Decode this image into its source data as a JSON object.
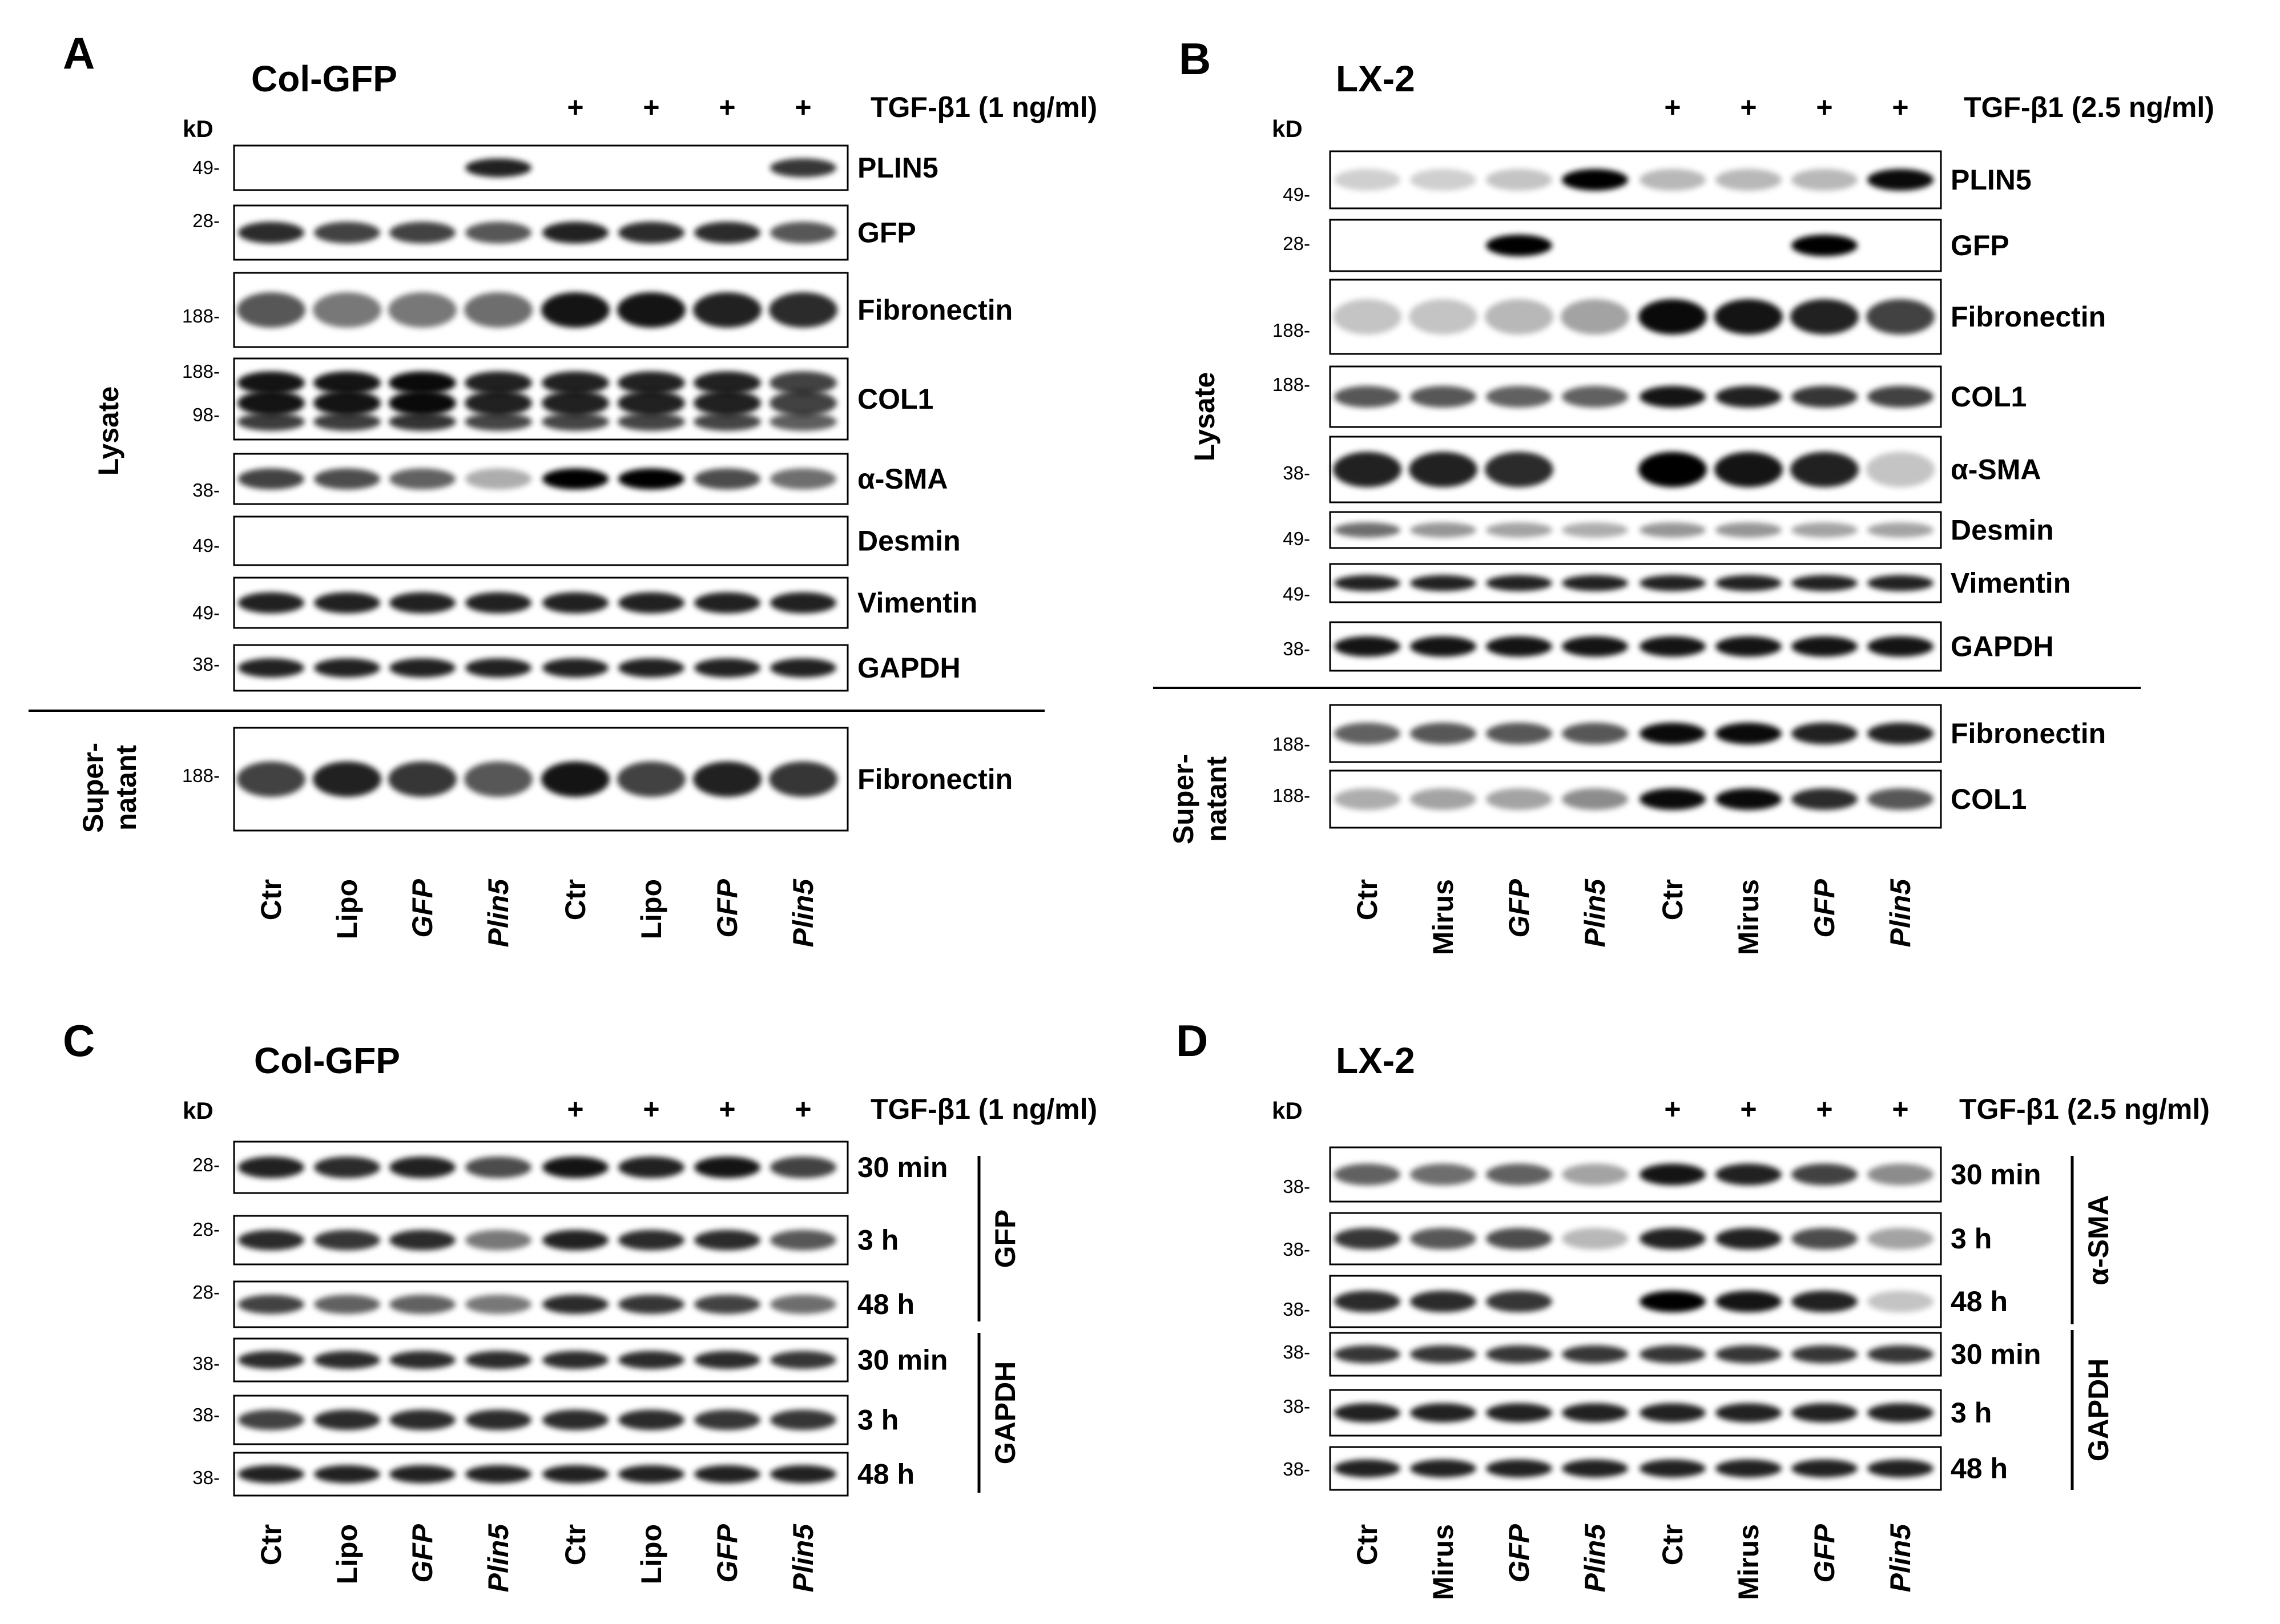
{
  "panels": [
    {
      "id": "A",
      "label": "A",
      "title": "Col-GFP",
      "treatment": "TGF-β1 (1 ng/ml)",
      "kd_header": "kD",
      "plus": [
        "+",
        "+",
        "+",
        "+"
      ],
      "lanes": [
        {
          "label": "Ctr",
          "italic": false
        },
        {
          "label": "Lipo",
          "italic": false
        },
        {
          "label": "GFP",
          "italic": true
        },
        {
          "label": "Plin5",
          "italic": true
        },
        {
          "label": "Ctr",
          "italic": false
        },
        {
          "label": "Lipo",
          "italic": false
        },
        {
          "label": "GFP",
          "italic": true
        },
        {
          "label": "Plin5",
          "italic": true
        }
      ],
      "sections": [
        {
          "label": "Lysate"
        },
        {
          "label": "Super-\nnatant"
        }
      ],
      "blots": [
        {
          "label": "PLIN5",
          "markers": [
            "49-"
          ],
          "bands": [
            0,
            0,
            0,
            0.85,
            0,
            0,
            0,
            0.75
          ]
        },
        {
          "label": "GFP",
          "markers": [
            "28-"
          ],
          "bands": [
            0.8,
            0.7,
            0.7,
            0.6,
            0.85,
            0.8,
            0.8,
            0.6
          ]
        },
        {
          "label": "Fibronectin",
          "markers": [
            "188-"
          ],
          "bands": [
            0.6,
            0.45,
            0.45,
            0.5,
            0.9,
            0.9,
            0.85,
            0.8
          ]
        },
        {
          "label": "COL1",
          "markers": [
            "188-",
            "98-"
          ],
          "bands": [
            0.9,
            0.9,
            0.95,
            0.85,
            0.85,
            0.85,
            0.85,
            0.7
          ]
        },
        {
          "label": "α-SMA",
          "markers": [
            "38-"
          ],
          "bands": [
            0.7,
            0.65,
            0.55,
            0.2,
            1,
            1,
            0.65,
            0.5
          ]
        },
        {
          "label": "Desmin",
          "markers": [
            "49-"
          ],
          "bands": [
            0,
            0,
            0,
            0,
            0,
            0,
            0,
            0
          ]
        },
        {
          "label": "Vimentin",
          "markers": [
            "49-"
          ],
          "bands": [
            0.85,
            0.85,
            0.85,
            0.85,
            0.85,
            0.85,
            0.85,
            0.85
          ]
        },
        {
          "label": "GAPDH",
          "markers": [
            "38-"
          ],
          "bands": [
            0.85,
            0.85,
            0.85,
            0.85,
            0.85,
            0.85,
            0.85,
            0.85
          ]
        },
        {
          "label": "Fibronectin",
          "markers": [
            "188-"
          ],
          "bands": [
            0.7,
            0.85,
            0.75,
            0.6,
            0.9,
            0.7,
            0.85,
            0.75
          ]
        }
      ]
    },
    {
      "id": "B",
      "label": "B",
      "title": "LX-2",
      "treatment": "TGF-β1  (2.5 ng/ml)",
      "kd_header": "kD",
      "plus": [
        "+",
        "+",
        "+",
        "+"
      ],
      "lanes": [
        {
          "label": "Ctr",
          "italic": false
        },
        {
          "label": "Mirus",
          "italic": false
        },
        {
          "label": "GFP",
          "italic": true
        },
        {
          "label": "Plin5",
          "italic": true
        },
        {
          "label": "Ctr",
          "italic": false
        },
        {
          "label": "Mirus",
          "italic": false
        },
        {
          "label": "GFP",
          "italic": true
        },
        {
          "label": "Plin5",
          "italic": true
        }
      ],
      "sections": [
        {
          "label": "Lysate"
        },
        {
          "label": "Super-\nnatant"
        }
      ],
      "blots": [
        {
          "label": "PLIN5",
          "markers": [
            "49-"
          ],
          "bands": [
            0.05,
            0.05,
            0.1,
            1,
            0.15,
            0.15,
            0.15,
            0.95
          ]
        },
        {
          "label": "GFP",
          "markers": [
            "28-"
          ],
          "bands": [
            0,
            0,
            1,
            0,
            0,
            0,
            1,
            0
          ]
        },
        {
          "label": "Fibronectin",
          "markers": [
            "188-"
          ],
          "bands": [
            0.1,
            0.1,
            0.15,
            0.25,
            0.95,
            0.9,
            0.85,
            0.7
          ]
        },
        {
          "label": "COL1",
          "markers": [
            "188-"
          ],
          "bands": [
            0.6,
            0.6,
            0.55,
            0.55,
            0.9,
            0.85,
            0.75,
            0.7
          ]
        },
        {
          "label": "α-SMA",
          "markers": [
            "38-"
          ],
          "bands": [
            0.85,
            0.85,
            0.8,
            0,
            1,
            0.9,
            0.85,
            0.1
          ]
        },
        {
          "label": "Desmin",
          "markers": [
            "49-"
          ],
          "bands": [
            0.5,
            0.3,
            0.25,
            0.2,
            0.3,
            0.3,
            0.25,
            0.25
          ]
        },
        {
          "label": "Vimentin",
          "markers": [
            "49-"
          ],
          "bands": [
            0.85,
            0.85,
            0.85,
            0.85,
            0.85,
            0.85,
            0.85,
            0.85
          ]
        },
        {
          "label": "GAPDH",
          "markers": [
            "38-"
          ],
          "bands": [
            0.9,
            0.9,
            0.9,
            0.9,
            0.9,
            0.9,
            0.9,
            0.9
          ]
        },
        {
          "label": "Fibronectin",
          "markers": [
            "188-"
          ],
          "bands": [
            0.55,
            0.6,
            0.6,
            0.6,
            0.95,
            0.95,
            0.85,
            0.85
          ]
        },
        {
          "label": "COL1",
          "markers": [
            "188-"
          ],
          "bands": [
            0.2,
            0.25,
            0.25,
            0.35,
            0.95,
            0.95,
            0.8,
            0.6
          ]
        }
      ]
    },
    {
      "id": "C",
      "label": "C",
      "title": "Col-GFP",
      "treatment": "TGF-β1 (1 ng/ml)",
      "kd_header": "kD",
      "plus": [
        "+",
        "+",
        "+",
        "+"
      ],
      "lanes": [
        {
          "label": "Ctr",
          "italic": false
        },
        {
          "label": "Lipo",
          "italic": false
        },
        {
          "label": "GFP",
          "italic": true
        },
        {
          "label": "Plin5",
          "italic": true
        },
        {
          "label": "Ctr",
          "italic": false
        },
        {
          "label": "Lipo",
          "italic": false
        },
        {
          "label": "GFP",
          "italic": true
        },
        {
          "label": "Plin5",
          "italic": true
        }
      ],
      "groups": [
        {
          "label": "GFP"
        },
        {
          "label": "GAPDH"
        }
      ],
      "blots": [
        {
          "label": "30 min",
          "markers": [
            "28-"
          ],
          "bands": [
            0.85,
            0.8,
            0.85,
            0.65,
            0.9,
            0.85,
            0.9,
            0.7
          ]
        },
        {
          "label": "3 h",
          "markers": [
            "28-"
          ],
          "bands": [
            0.8,
            0.75,
            0.8,
            0.45,
            0.85,
            0.8,
            0.8,
            0.6
          ]
        },
        {
          "label": "48 h",
          "markers": [
            "28-"
          ],
          "bands": [
            0.7,
            0.55,
            0.55,
            0.45,
            0.8,
            0.75,
            0.7,
            0.5
          ]
        },
        {
          "label": "30 min",
          "markers": [
            "38-"
          ],
          "bands": [
            0.8,
            0.8,
            0.8,
            0.8,
            0.8,
            0.8,
            0.8,
            0.75
          ]
        },
        {
          "label": "3 h",
          "markers": [
            "38-"
          ],
          "bands": [
            0.7,
            0.8,
            0.8,
            0.8,
            0.8,
            0.8,
            0.75,
            0.75
          ]
        },
        {
          "label": "48 h",
          "markers": [
            "38-"
          ],
          "bands": [
            0.85,
            0.85,
            0.85,
            0.85,
            0.85,
            0.85,
            0.85,
            0.85
          ]
        }
      ]
    },
    {
      "id": "D",
      "label": "D",
      "title": "LX-2",
      "treatment": "TGF-β1 (2.5 ng/ml)",
      "kd_header": "kD",
      "plus": [
        "+",
        "+",
        "+",
        "+"
      ],
      "lanes": [
        {
          "label": "Ctr",
          "italic": false
        },
        {
          "label": "Mirus",
          "italic": false
        },
        {
          "label": "GFP",
          "italic": true
        },
        {
          "label": "Plin5",
          "italic": true
        },
        {
          "label": "Ctr",
          "italic": false
        },
        {
          "label": "Mirus",
          "italic": false
        },
        {
          "label": "GFP",
          "italic": true
        },
        {
          "label": "Plin5",
          "italic": true
        }
      ],
      "groups": [
        {
          "label": "α-SMA"
        },
        {
          "label": "GAPDH"
        }
      ],
      "blots": [
        {
          "label": "30 min",
          "markers": [
            "38-"
          ],
          "bands": [
            0.55,
            0.5,
            0.55,
            0.25,
            0.9,
            0.85,
            0.7,
            0.35
          ]
        },
        {
          "label": "3 h",
          "markers": [
            "38-"
          ],
          "bands": [
            0.75,
            0.6,
            0.65,
            0.15,
            0.85,
            0.85,
            0.65,
            0.25
          ]
        },
        {
          "label": "48 h",
          "markers": [
            "38-"
          ],
          "bands": [
            0.8,
            0.8,
            0.75,
            0,
            1,
            0.9,
            0.85,
            0.1
          ]
        },
        {
          "label": "30 min",
          "markers": [
            "38-"
          ],
          "bands": [
            0.75,
            0.75,
            0.75,
            0.75,
            0.75,
            0.75,
            0.75,
            0.75
          ]
        },
        {
          "label": "3 h",
          "markers": [
            "38-"
          ],
          "bands": [
            0.85,
            0.85,
            0.85,
            0.85,
            0.85,
            0.85,
            0.85,
            0.85
          ]
        },
        {
          "label": "48 h",
          "markers": [
            "38-"
          ],
          "bands": [
            0.85,
            0.85,
            0.85,
            0.85,
            0.85,
            0.85,
            0.85,
            0.85
          ]
        }
      ]
    }
  ]
}
